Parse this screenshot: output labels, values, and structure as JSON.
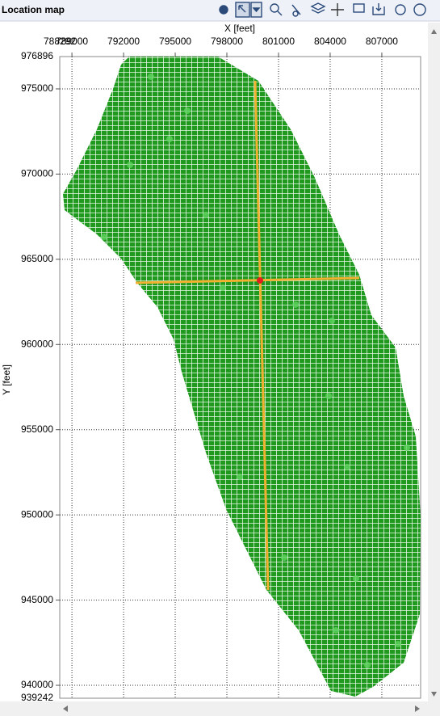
{
  "header": {
    "title": "Location map"
  },
  "map": {
    "x_label": "X [feet]",
    "y_label": "Y [feet]",
    "xlim": [
      788292,
      809254
    ],
    "ylim": [
      939242,
      976896
    ],
    "xticks": [
      789000,
      792000,
      795000,
      798000,
      801000,
      804000,
      807000
    ],
    "yticks": [
      940000,
      945000,
      950000,
      955000,
      960000,
      965000,
      970000,
      975000
    ]
  }
}
